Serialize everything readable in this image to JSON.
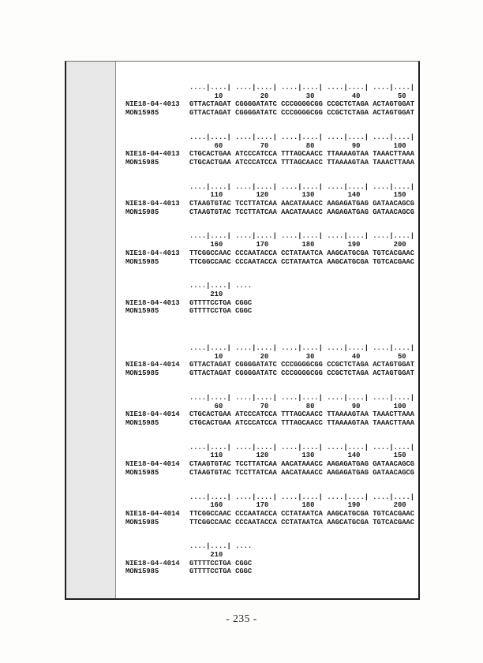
{
  "page": {
    "number": "- 235 -"
  },
  "alignments": [
    {
      "blocks": [
        {
          "ruler": "....|....| ....|....| ....|....| ....|....| ....|....|",
          "numbers": "      10         20         30         40         50",
          "rows": [
            {
              "label": "NIE18-G4-4013",
              "seq": "GTTACTAGAT CGGGGATATC CCCGGGGCGG CCGCTCTAGA ACTAGTGGAT"
            },
            {
              "label": "MON15985",
              "seq": "GTTACTAGAT CGGGGATATC CCCGGGGCGG CCGCTCTAGA ACTAGTGGAT"
            }
          ]
        },
        {
          "ruler": "....|....| ....|....| ....|....| ....|....| ....|....|",
          "numbers": "      60         70         80         90        100",
          "rows": [
            {
              "label": "NIE18-G4-4013",
              "seq": "CTGCACTGAA ATCCCATCCA TTTAGCAACC TTAAAAGTAA TAAACTTAAA"
            },
            {
              "label": "MON15985",
              "seq": "CTGCACTGAA ATCCCATCCA TTTAGCAACC TTAAAAGTAA TAAACTTAAA"
            }
          ]
        },
        {
          "ruler": "....|....| ....|....| ....|....| ....|....| ....|....|",
          "numbers": "     110        120        130        140        150",
          "rows": [
            {
              "label": "NIE18-G4-4013",
              "seq": "CTAAGTGTAC TCCTTATCAA AACATAAACC AAGAGATGAG GATAACAGCG"
            },
            {
              "label": "MON15985",
              "seq": "CTAAGTGTAC TCCTTATCAA AACATAAACC AAGAGATGAG GATAACAGCG"
            }
          ]
        },
        {
          "ruler": "....|....| ....|....| ....|....| ....|....| ....|....|",
          "numbers": "     160        170        180        190        200",
          "rows": [
            {
              "label": "NIE18-G4-4013",
              "seq": "TTCGGCCAAC CCCAATACCA CCTATAATCA AAGCATGCGA TGTCACGAAC"
            },
            {
              "label": "MON15985",
              "seq": "TTCGGCCAAC CCCAATACCA CCTATAATCA AAGCATGCGA TGTCACGAAC"
            }
          ]
        },
        {
          "ruler": "....|....| ....",
          "numbers": "     210",
          "rows": [
            {
              "label": "NIE18-G4-4013",
              "seq": "GTTTTCCTGA CGGC"
            },
            {
              "label": "MON15985",
              "seq": "GTTTTCCTGA CGGC"
            }
          ]
        }
      ]
    },
    {
      "blocks": [
        {
          "ruler": "....|....| ....|....| ....|....| ....|....| ....|....|",
          "numbers": "      10         20         30         40         50",
          "rows": [
            {
              "label": "NIE18-G4-4014",
              "seq": "GTTACTAGAT CGGGGATATC CCCGGGGCGG CCGCTCTAGA ACTAGTGGAT"
            },
            {
              "label": "MON15985",
              "seq": "GTTACTAGAT CGGGGATATC CCCGGGGCGG CCGCTCTAGA ACTAGTGGAT"
            }
          ]
        },
        {
          "ruler": "....|....| ....|....| ....|....| ....|....| ....|....|",
          "numbers": "      60         70         80         90        100",
          "rows": [
            {
              "label": "NIE18-G4-4014",
              "seq": "CTGCACTGAA ATCCCATCCA TTTAGCAACC TTAAAAGTAA TAAACTTAAA"
            },
            {
              "label": "MON15985",
              "seq": "CTGCACTGAA ATCCCATCCA TTTAGCAACC TTAAAAGTAA TAAACTTAAA"
            }
          ]
        },
        {
          "ruler": "....|....| ....|....| ....|....| ....|....| ....|....|",
          "numbers": "     110        120        130        140        150",
          "rows": [
            {
              "label": "NIE18-G4-4014",
              "seq": "CTAAGTGTAC TCCTTATCAA AACATAAACC AAGAGATGAG GATAACAGCG"
            },
            {
              "label": "MON15985",
              "seq": "CTAAGTGTAC TCCTTATCAA AACATAAACC AAGAGATGAG GATAACAGCG"
            }
          ]
        },
        {
          "ruler": "....|....| ....|....| ....|....| ....|....| ....|....|",
          "numbers": "     160        170        180        190        200",
          "rows": [
            {
              "label": "NIE18-G4-4014",
              "seq": "TTCGGCCAAC CCCAATACCA CCTATAATCA AAGCATGCGA TGTCACGAAC"
            },
            {
              "label": "MON15985",
              "seq": "TTCGGCCAAC CCCAATACCA CCTATAATCA AAGCATGCGA TGTCACGAAC"
            }
          ]
        },
        {
          "ruler": "....|....| ....",
          "numbers": "     210",
          "rows": [
            {
              "label": "NIE18-G4-4014",
              "seq": "GTTTTCCTGA CGGC"
            },
            {
              "label": "MON15985",
              "seq": "GTTTTCCTGA CGGC"
            }
          ]
        }
      ]
    }
  ]
}
